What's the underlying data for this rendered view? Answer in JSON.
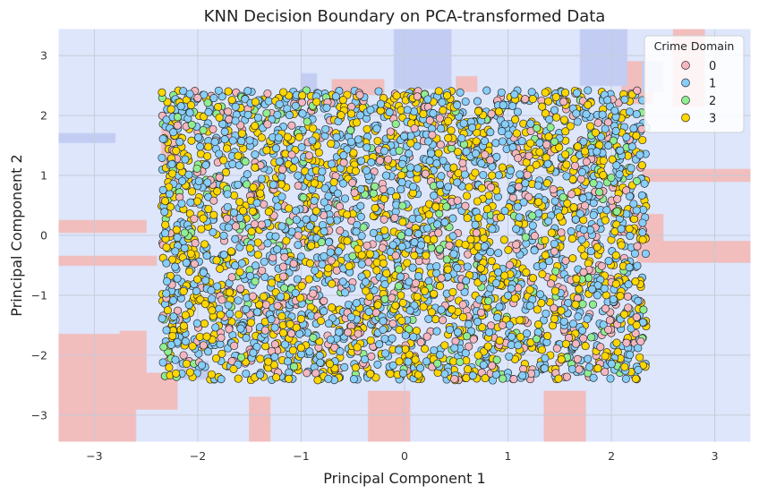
{
  "chart_data": {
    "type": "scatter",
    "title": "KNN Decision Boundary on PCA-transformed Data",
    "xlabel": "Principal Component 1",
    "ylabel": "Principal Component 2",
    "xlim": [
      -3.35,
      3.35
    ],
    "ylim": [
      -3.45,
      3.45
    ],
    "xticks": [
      -3,
      -2,
      -1,
      0,
      1,
      2,
      3
    ],
    "yticks": [
      -3,
      -2,
      -1,
      0,
      1,
      2,
      3
    ],
    "xtick_labels": [
      "−3",
      "−2",
      "−1",
      "0",
      "1",
      "2",
      "3"
    ],
    "ytick_labels": [
      "−3",
      "−2",
      "−1",
      "0",
      "1",
      "2",
      "3"
    ],
    "grid": true,
    "legend": {
      "title": "Crime Domain",
      "placement": "top-right",
      "entries": [
        {
          "label": "0",
          "color": "#f4b7c0"
        },
        {
          "label": "1",
          "color": "#87cefa"
        },
        {
          "label": "2",
          "color": "#90ee90"
        },
        {
          "label": "3",
          "color": "#ffd700"
        }
      ]
    },
    "series": [
      {
        "name": "0",
        "color": "#f4b7c0"
      },
      {
        "name": "1",
        "color": "#87cefa"
      },
      {
        "name": "2",
        "color": "#90ee90"
      },
      {
        "name": "3",
        "color": "#ffd700"
      }
    ],
    "points_cloud": {
      "x_range": [
        -2.35,
        2.35
      ],
      "y_range": [
        -2.42,
        2.42
      ],
      "note_counts": {
        "0": 550,
        "1": 1500,
        "2": 260,
        "3": 1300
      }
    },
    "decision_regions": {
      "background_class": "1",
      "background_color": "#dde6fb",
      "class0_color": "#f1bdbd",
      "class2_color": "#c3cdf3",
      "class0_regions": [
        [
          [
            -3.35,
            -3.45
          ],
          [
            -2.6,
            -3.45
          ],
          [
            -2.6,
            -2.9
          ],
          [
            -2.2,
            -2.9
          ],
          [
            -2.2,
            -2.3
          ],
          [
            -2.5,
            -2.3
          ],
          [
            -2.5,
            -1.6
          ],
          [
            -2.75,
            -1.6
          ],
          [
            -2.75,
            -1.65
          ],
          [
            -3.35,
            -1.65
          ]
        ],
        [
          [
            -3.35,
            0.05
          ],
          [
            -2.5,
            0.05
          ],
          [
            -2.5,
            0.25
          ],
          [
            -3.35,
            0.25
          ]
        ],
        [
          [
            -3.35,
            -0.5
          ],
          [
            -2.4,
            -0.5
          ],
          [
            -2.4,
            -0.35
          ],
          [
            -3.35,
            -0.35
          ]
        ],
        [
          [
            -1.5,
            -3.45
          ],
          [
            -1.3,
            -3.45
          ],
          [
            -1.3,
            -2.7
          ],
          [
            -1.5,
            -2.7
          ]
        ],
        [
          [
            -0.35,
            -3.45
          ],
          [
            0.05,
            -3.45
          ],
          [
            0.05,
            -2.6
          ],
          [
            -0.35,
            -2.6
          ]
        ],
        [
          [
            1.35,
            -3.45
          ],
          [
            1.75,
            -3.45
          ],
          [
            1.75,
            -2.6
          ],
          [
            1.35,
            -2.6
          ]
        ],
        [
          [
            2.25,
            -0.45
          ],
          [
            3.35,
            -0.45
          ],
          [
            3.35,
            -0.1
          ],
          [
            2.5,
            -0.1
          ],
          [
            2.5,
            0.35
          ],
          [
            2.25,
            0.35
          ]
        ],
        [
          [
            2.6,
            2.15
          ],
          [
            2.9,
            2.15
          ],
          [
            2.9,
            3.45
          ],
          [
            2.6,
            3.45
          ]
        ],
        [
          [
            2.1,
            2.2
          ],
          [
            2.4,
            2.2
          ],
          [
            2.4,
            2.9
          ],
          [
            2.1,
            2.9
          ]
        ],
        [
          [
            -2.35,
            1.2
          ],
          [
            -2.2,
            1.2
          ],
          [
            -2.2,
            1.8
          ],
          [
            -2.35,
            1.8
          ]
        ],
        [
          [
            -0.7,
            2.35
          ],
          [
            -0.2,
            2.35
          ],
          [
            -0.2,
            2.6
          ],
          [
            -0.7,
            2.6
          ]
        ],
        [
          [
            0.5,
            2.4
          ],
          [
            0.7,
            2.4
          ],
          [
            0.7,
            2.65
          ],
          [
            0.5,
            2.65
          ]
        ],
        [
          [
            2.3,
            0.9
          ],
          [
            3.35,
            0.9
          ],
          [
            3.35,
            1.1
          ],
          [
            2.3,
            1.1
          ]
        ]
      ],
      "class2_regions": [
        [
          [
            -0.1,
            2.45
          ],
          [
            0.45,
            2.45
          ],
          [
            0.45,
            3.45
          ],
          [
            -0.1,
            3.45
          ]
        ],
        [
          [
            1.7,
            2.5
          ],
          [
            2.15,
            2.5
          ],
          [
            2.15,
            3.45
          ],
          [
            1.7,
            3.45
          ]
        ],
        [
          [
            -3.35,
            1.55
          ],
          [
            -2.8,
            1.55
          ],
          [
            -2.8,
            1.7
          ],
          [
            -3.35,
            1.7
          ]
        ],
        [
          [
            -2.2,
            -2.4
          ],
          [
            -1.9,
            -2.4
          ],
          [
            -1.9,
            -2.1
          ],
          [
            -2.2,
            -2.1
          ]
        ],
        [
          [
            -1.0,
            2.4
          ],
          [
            -0.85,
            2.4
          ],
          [
            -0.85,
            2.7
          ],
          [
            -1.0,
            2.7
          ]
        ],
        [
          [
            2.3,
            2.4
          ],
          [
            2.5,
            2.4
          ],
          [
            2.5,
            2.9
          ],
          [
            2.3,
            2.9
          ]
        ]
      ]
    }
  }
}
